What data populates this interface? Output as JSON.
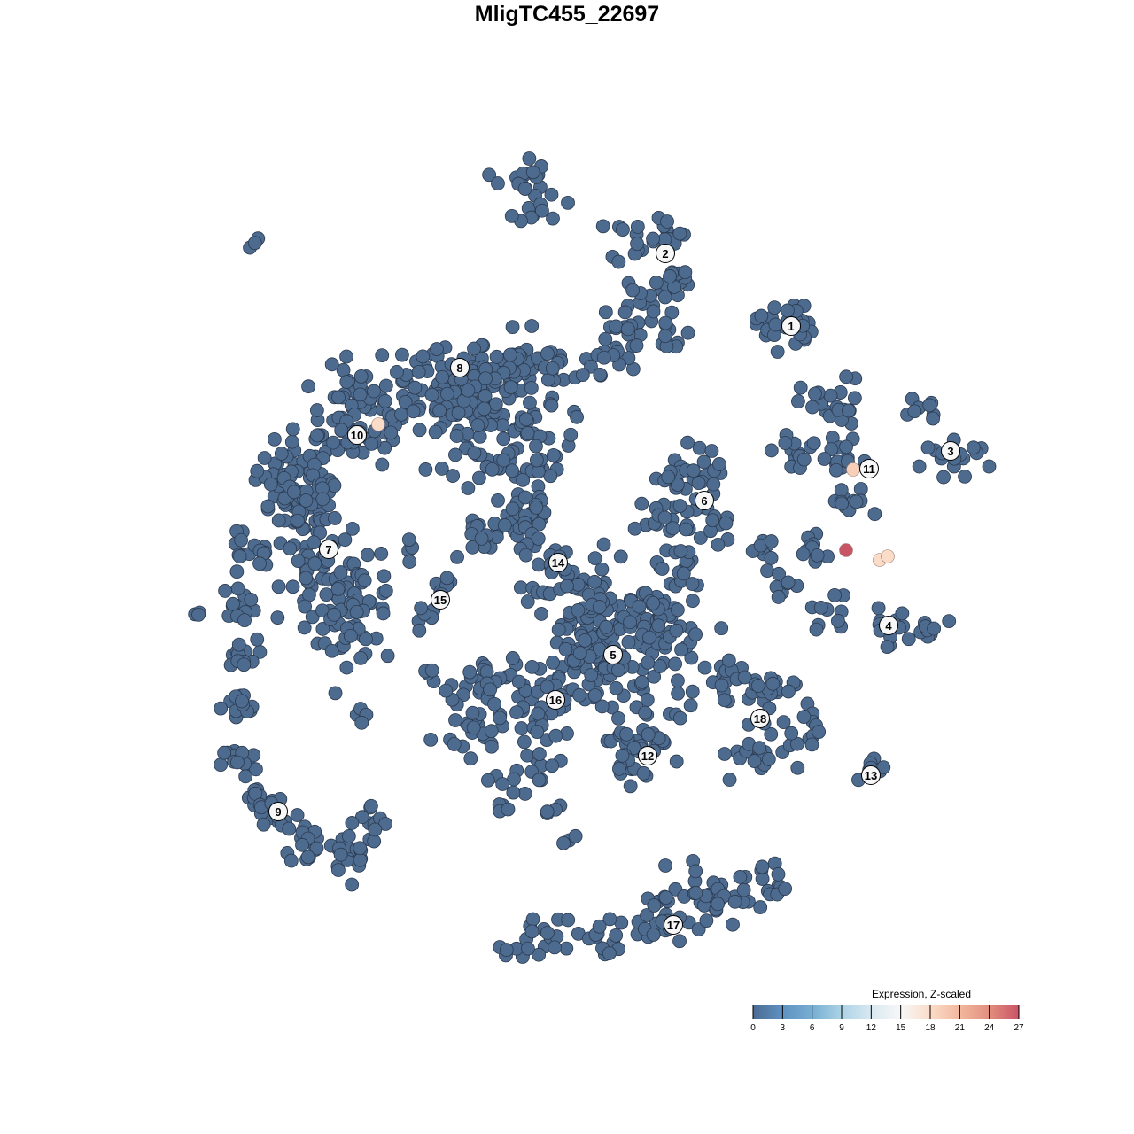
{
  "title": "MligTC455_22697",
  "chart_data": {
    "type": "scatter",
    "title": "MligTC455_22697",
    "xlabel": "",
    "ylabel": "",
    "xlim": [
      -50,
      50
    ],
    "ylim": [
      -50,
      50
    ],
    "grid": false,
    "axes_visible": false,
    "base_point_color": "#4d6a8f",
    "point_outline_color": "#2b3a4e",
    "cluster_regions": [
      {
        "cluster": "8",
        "blobs": [
          [
            -30,
            11,
            2.5,
            40
          ],
          [
            -23,
            17,
            3,
            60
          ],
          [
            -14,
            21,
            3,
            70
          ],
          [
            -6,
            22,
            2.5,
            60
          ],
          [
            -4,
            13,
            2.5,
            40
          ],
          [
            -10,
            16,
            3,
            60
          ],
          [
            -5,
            6,
            2,
            25
          ]
        ]
      },
      {
        "cluster": "10",
        "blobs": [
          [
            -24,
            15,
            2,
            20
          ],
          [
            -30,
            7,
            2,
            20
          ]
        ]
      },
      {
        "cluster": "7",
        "blobs": [
          [
            -30,
            6,
            2.5,
            40
          ],
          [
            -27,
            0,
            2.5,
            40
          ],
          [
            -24,
            -4,
            2.5,
            40
          ],
          [
            -25,
            -7,
            2,
            20
          ],
          [
            -36,
            1,
            1.5,
            15
          ],
          [
            -37,
            -4,
            1,
            12
          ]
        ]
      },
      {
        "cluster": "9",
        "blobs": [
          [
            -37,
            -10,
            1,
            15
          ],
          [
            -37,
            -16,
            1,
            15
          ],
          [
            -37,
            -22,
            1,
            15
          ],
          [
            -35,
            -26,
            1,
            10
          ],
          [
            -33,
            -28,
            1.5,
            15
          ],
          [
            -29,
            -31,
            1.5,
            20
          ],
          [
            -24,
            -32,
            1.5,
            20
          ],
          [
            -22,
            -29,
            1.2,
            10
          ]
        ]
      },
      {
        "cluster": "2",
        "blobs": [
          [
            -5,
            44,
            1.3,
            15
          ],
          [
            -3,
            41,
            1.3,
            12
          ],
          [
            8,
            37,
            1.5,
            12
          ],
          [
            11,
            38,
            1.2,
            12
          ],
          [
            12,
            32,
            1.3,
            15
          ],
          [
            11,
            26,
            1.3,
            12
          ],
          [
            8,
            30,
            1.3,
            12
          ],
          [
            6,
            27,
            1.3,
            12
          ],
          [
            6,
            24,
            1,
            8
          ],
          [
            3,
            23,
            1,
            8
          ],
          [
            -2,
            22.5,
            1,
            6
          ]
        ]
      },
      {
        "cluster": "1",
        "blobs": [
          [
            24.5,
            27.5,
            1.6,
            28
          ]
        ]
      },
      {
        "cluster": "11",
        "blobs": [
          [
            30,
            18,
            1.8,
            25
          ],
          [
            26,
            13,
            1.3,
            12
          ],
          [
            31,
            12,
            1.5,
            15
          ],
          [
            32,
            7,
            1.2,
            12
          ],
          [
            28,
            2.5,
            1.3,
            12
          ]
        ]
      },
      {
        "cluster": "3",
        "blobs": [
          [
            40,
            18,
            1,
            8
          ],
          [
            42,
            12.5,
            1,
            8
          ],
          [
            45.5,
            12.2,
            1,
            8
          ]
        ]
      },
      {
        "cluster": "4",
        "blobs": [
          [
            22,
            2,
            1,
            8
          ],
          [
            24.5,
            -1.5,
            1,
            8
          ],
          [
            30,
            -5,
            1.2,
            10
          ],
          [
            36,
            -7,
            1.2,
            12
          ],
          [
            40.5,
            -7.2,
            1,
            10
          ]
        ]
      },
      {
        "cluster": "6",
        "blobs": [
          [
            12,
            10,
            1.5,
            15
          ],
          [
            16,
            11,
            1.5,
            15
          ],
          [
            15,
            5,
            1.8,
            18
          ],
          [
            11,
            5,
            1.5,
            15
          ],
          [
            13,
            0,
            1.5,
            15
          ]
        ]
      },
      {
        "cluster": "14",
        "blobs": [
          [
            -9,
            3,
            1.2,
            12
          ],
          [
            -4,
            3,
            1.5,
            14
          ],
          [
            -2,
            0,
            1.5,
            15
          ]
        ]
      },
      {
        "cluster": "15",
        "blobs": [
          [
            -17.5,
            1.5,
            0.8,
            4
          ],
          [
            -14.5,
            -2,
            0.8,
            6
          ],
          [
            -16,
            -6,
            0.8,
            6
          ]
        ]
      },
      {
        "cluster": "5",
        "blobs": [
          [
            5,
            -10,
            4.5,
            160
          ],
          [
            2,
            -4,
            2.5,
            30
          ],
          [
            10,
            -6,
            2.5,
            30
          ]
        ]
      },
      {
        "cluster": "16",
        "blobs": [
          [
            -9,
            -13,
            1.8,
            20
          ],
          [
            -11,
            -18,
            1.8,
            25
          ],
          [
            -3,
            -16,
            2,
            30
          ],
          [
            -4,
            -22,
            1.5,
            12
          ],
          [
            -7,
            -26,
            1.2,
            8
          ]
        ]
      },
      {
        "cluster": "12",
        "blobs": [
          [
            9,
            -19,
            1.8,
            25
          ],
          [
            7,
            -23,
            1.3,
            12
          ]
        ]
      },
      {
        "cluster": "18",
        "blobs": [
          [
            18,
            -12,
            1.5,
            15
          ],
          [
            22,
            -15,
            1.8,
            20
          ],
          [
            21,
            -21,
            1.8,
            20
          ],
          [
            26,
            -19,
            1.3,
            12
          ]
        ]
      },
      {
        "cluster": "13",
        "blobs": [
          [
            34.5,
            -23.5,
            1.2,
            8
          ]
        ]
      },
      {
        "cluster": "17",
        "blobs": [
          [
            -4,
            -42.5,
            1.5,
            20
          ],
          [
            4,
            -42,
            1.5,
            15
          ],
          [
            10,
            -40,
            1.8,
            20
          ],
          [
            16,
            -37,
            2,
            30
          ],
          [
            22,
            -36,
            1.5,
            20
          ]
        ]
      },
      {
        "cluster": "",
        "blobs": [
          [
            -35,
            36.5,
            0.5,
            3
          ],
          [
            -42,
            -5,
            0.5,
            3
          ],
          [
            -23,
            -16.5,
            0.5,
            4
          ],
          [
            -15.5,
            -12,
            0.6,
            4
          ],
          [
            0.5,
            -31,
            0.6,
            3
          ],
          [
            -2,
            -27,
            0.7,
            4
          ]
        ]
      }
    ],
    "highlighted_points": [
      {
        "x": -21.3,
        "y": 16.1,
        "value": 18
      },
      {
        "x": 32.3,
        "y": 11.0,
        "value": 19
      },
      {
        "x": 35.3,
        "y": 0.8,
        "value": 18
      },
      {
        "x": 36.2,
        "y": 1.2,
        "value": 18
      },
      {
        "x": 31.5,
        "y": 1.9,
        "value": 27
      }
    ],
    "cluster_labels": [
      {
        "label": "1",
        "x": 25.3,
        "y": 27.2
      },
      {
        "label": "2",
        "x": 11.1,
        "y": 35.4
      },
      {
        "label": "3",
        "x": 43.3,
        "y": 13.1
      },
      {
        "label": "4",
        "x": 36.3,
        "y": -6.6
      },
      {
        "label": "5",
        "x": 5.2,
        "y": -9.9
      },
      {
        "label": "6",
        "x": 15.5,
        "y": 7.5
      },
      {
        "label": "7",
        "x": -26.9,
        "y": 2.0
      },
      {
        "label": "8",
        "x": -12.1,
        "y": 22.5
      },
      {
        "label": "9",
        "x": -32.6,
        "y": -27.6
      },
      {
        "label": "10",
        "x": -23.7,
        "y": 14.9
      },
      {
        "label": "11",
        "x": 34.1,
        "y": 11.1
      },
      {
        "label": "12",
        "x": 9.1,
        "y": -21.3
      },
      {
        "label": "13",
        "x": 34.3,
        "y": -23.5
      },
      {
        "label": "14",
        "x": -1.0,
        "y": 0.5
      },
      {
        "label": "15",
        "x": -14.3,
        "y": -3.7
      },
      {
        "label": "16",
        "x": -1.3,
        "y": -15.0
      },
      {
        "label": "17",
        "x": 12.0,
        "y": -40.4
      },
      {
        "label": "18",
        "x": 21.8,
        "y": -17.1
      }
    ],
    "legend": {
      "title": "Expression, Z-scaled",
      "position": "bottom-right",
      "ticks": [
        "0",
        "3",
        "6",
        "9",
        "12",
        "15",
        "18",
        "21",
        "24",
        "27"
      ],
      "range": [
        0,
        27
      ],
      "colors": [
        "#4b6b93",
        "#5f92c2",
        "#77aed2",
        "#acd3e6",
        "#d9e8f1",
        "#f7f7f7",
        "#fbdcc8",
        "#f3b79e",
        "#e28f7e",
        "#c85466"
      ]
    }
  }
}
